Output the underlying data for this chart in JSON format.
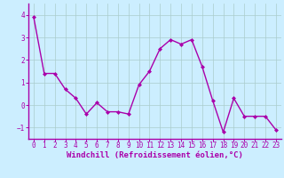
{
  "x": [
    0,
    1,
    2,
    3,
    4,
    5,
    6,
    7,
    8,
    9,
    10,
    11,
    12,
    13,
    14,
    15,
    16,
    17,
    18,
    19,
    20,
    21,
    22,
    23
  ],
  "y": [
    3.9,
    1.4,
    1.4,
    0.7,
    0.3,
    -0.4,
    0.1,
    -0.3,
    -0.3,
    -0.4,
    0.9,
    1.5,
    2.5,
    2.9,
    2.7,
    2.9,
    1.7,
    0.2,
    -1.2,
    0.3,
    -0.5,
    -0.5,
    -0.5,
    -1.1
  ],
  "line_color": "#aa00aa",
  "marker": "D",
  "markersize": 2,
  "linewidth": 1.0,
  "bg_color": "#cceeff",
  "plot_bg_color": "#cceeff",
  "grid_color": "#aacccc",
  "xlabel": "Windchill (Refroidissement éolien,°C)",
  "xlabel_fontsize": 6.5,
  "xlabel_color": "#aa00aa",
  "ylim": [
    -1.5,
    4.5
  ],
  "xlim": [
    -0.5,
    23.5
  ],
  "yticks": [
    -1,
    0,
    1,
    2,
    3,
    4
  ],
  "xticks": [
    0,
    1,
    2,
    3,
    4,
    5,
    6,
    7,
    8,
    9,
    10,
    11,
    12,
    13,
    14,
    15,
    16,
    17,
    18,
    19,
    20,
    21,
    22,
    23
  ],
  "tick_fontsize": 5.5,
  "tick_color": "#aa00aa",
  "spine_color": "#aa00aa",
  "bottom_spine_color": "#aa00aa"
}
